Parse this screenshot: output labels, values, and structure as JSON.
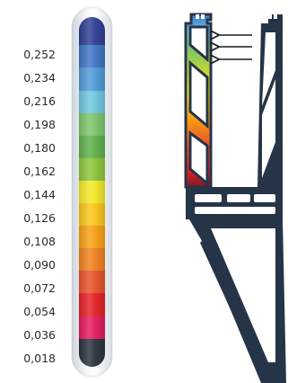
{
  "legend": {
    "values": [
      "0,252",
      "0,234",
      "0,216",
      "0,198",
      "0,180",
      "0,162",
      "0,144",
      "0,126",
      "0,108",
      "0,090",
      "0,072",
      "0,054",
      "0,036",
      "0,018"
    ],
    "colors": [
      "#2e3e94",
      "#3f74c4",
      "#4f9ad8",
      "#6fc6e0",
      "#7cc46a",
      "#5fb04a",
      "#8cc43a",
      "#f2e824",
      "#f8c618",
      "#f7a014",
      "#f0801e",
      "#e8522a",
      "#e42026",
      "#e41a5e",
      "#2b323f"
    ]
  },
  "diagram": {
    "structure_color": "#263447",
    "arrow_count": 3
  }
}
